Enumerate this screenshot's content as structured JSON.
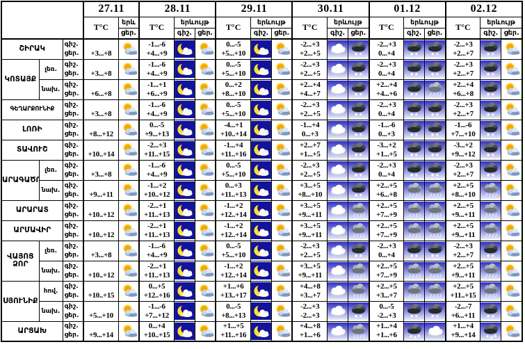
{
  "colors": {
    "border": "#000000",
    "night_icon_bg": "#12129a",
    "day_icon_bg": "#ffffff",
    "blue_gradient_top": "#2f2fc3",
    "blue_gradient_bottom": "#e6ebfa",
    "sun": "#f6a800"
  },
  "chart_data": {
    "type": "table",
    "title": "",
    "dates": [
      "27.11",
      "28.11",
      "29.11",
      "30.11",
      "01.12",
      "02.12"
    ],
    "temp_label": "T°C",
    "phenomenon_label": "երևույթ",
    "phenomenon_short": "երև",
    "night_label": "գիշ.",
    "day_label": "ցեր.",
    "icon_legend": {
      "sun-cloud": "partly cloudy day (sun with cloud)",
      "moon-cloud": "clear night (crescent moon with cloud)",
      "cloud": "cloudy (white cloud on blue sky)",
      "rain": "rain (gray cloud with rain streaks)",
      "rain-dark": "rain (dark cloud with drops)",
      "snow": "snow (dark cloud with snowflakes)"
    },
    "regions": [
      {
        "name": "ՇԻՐԱԿ",
        "zones": [
          {
            "label": "",
            "cells": [
              {
                "d": "+3...+8",
                "di": "sun-cloud"
              },
              {
                "n": "-1...-6",
                "d": "+4...+9",
                "ni": "moon-cloud",
                "di": "sun-cloud"
              },
              {
                "n": "0...-5",
                "d": "+5...+10",
                "ni": "moon-cloud",
                "di": "sun-cloud"
              },
              {
                "n": "-2...+3",
                "d": "+2...+5",
                "ni": "cloud",
                "di": "rain-dark"
              },
              {
                "n": "-2...+3",
                "d": "0...+4",
                "ni": "rain-dark",
                "di": "rain-dark"
              },
              {
                "n": "-2...+3",
                "d": "+2...+7",
                "ni": "rain-dark",
                "di": "sun-cloud"
              }
            ]
          }
        ]
      },
      {
        "name": "ԿՈՏԱՅՔ",
        "zones": [
          {
            "label": "լեռ.",
            "cells": [
              {
                "d": "+3...+8",
                "di": "sun-cloud"
              },
              {
                "n": "-1...-6",
                "d": "+4...+9",
                "ni": "moon-cloud",
                "di": "sun-cloud"
              },
              {
                "n": "0...-5",
                "d": "+5...+10",
                "ni": "moon-cloud",
                "di": "sun-cloud"
              },
              {
                "n": "-2...+3",
                "d": "+2...+5",
                "ni": "cloud",
                "di": "rain-dark"
              },
              {
                "n": "-2...+3",
                "d": "0...+4",
                "ni": "rain-dark",
                "di": "rain-dark"
              },
              {
                "n": "-2...+3",
                "d": "+2...+7",
                "ni": "rain-dark",
                "di": "sun-cloud"
              }
            ]
          },
          {
            "label": "նախ.",
            "cells": [
              {
                "d": "+6...+8",
                "di": "sun-cloud"
              },
              {
                "n": "-1...+1",
                "d": "+6...+9",
                "ni": "moon-cloud",
                "di": "sun-cloud"
              },
              {
                "n": "0...+2",
                "d": "+8...+10",
                "ni": "moon-cloud",
                "di": "sun-cloud"
              },
              {
                "n": "+2...+4",
                "d": "+4...+7",
                "ni": "cloud",
                "di": "rain-dark"
              },
              {
                "n": "+2...+4",
                "d": "+4...+6",
                "ni": "rain-dark",
                "di": "rain"
              },
              {
                "n": "+2...+4",
                "d": "+6...+8",
                "ni": "rain-dark",
                "di": "sun-cloud"
              }
            ]
          }
        ]
      },
      {
        "name": "ԳԵՂԱՐՔՈՒՆԻՔ",
        "zones": [
          {
            "label": "",
            "cells": [
              {
                "d": "+3...+8",
                "di": "sun-cloud"
              },
              {
                "n": "-1...-6",
                "d": "+4...+9",
                "ni": "moon-cloud",
                "di": "sun-cloud"
              },
              {
                "n": "0...-5",
                "d": "+5...+10",
                "ni": "moon-cloud",
                "di": "sun-cloud"
              },
              {
                "n": "-2...+3",
                "d": "+2...+5",
                "ni": "cloud",
                "di": "rain-dark"
              },
              {
                "n": "-2...+3",
                "d": "0...+4",
                "ni": "rain-dark",
                "di": "rain-dark"
              },
              {
                "n": "-2...+3",
                "d": "+2...+7",
                "ni": "rain-dark",
                "di": "sun-cloud"
              }
            ]
          }
        ]
      },
      {
        "name": "ԼՈՌԻ",
        "zones": [
          {
            "label": "",
            "cells": [
              {
                "d": "+8...+12",
                "di": "sun-cloud"
              },
              {
                "n": "0...-5",
                "d": "+9...+13",
                "ni": "moon-cloud",
                "di": "sun-cloud"
              },
              {
                "n": "-4...+1",
                "d": "+10..+14",
                "ni": "moon-cloud",
                "di": "sun-cloud"
              },
              {
                "n": "-1...+4",
                "d": "0...+3",
                "ni": "cloud",
                "di": "rain-dark"
              },
              {
                "n": "-1...-6",
                "d": "0...+3",
                "ni": "rain-dark",
                "di": "rain-dark"
              },
              {
                "n": "-1...-6",
                "d": "+7...+10",
                "ni": "rain-dark",
                "di": "sun-cloud"
              }
            ]
          }
        ]
      },
      {
        "name": "ՏԱՎՈՒՇ",
        "zones": [
          {
            "label": "",
            "cells": [
              {
                "d": "+10..+14",
                "di": "sun-cloud"
              },
              {
                "n": "-2...+3",
                "d": "+11..+15",
                "ni": "moon-cloud",
                "di": "sun-cloud"
              },
              {
                "n": "-1...+4",
                "d": "+11..+16",
                "ni": "moon-cloud",
                "di": "sun-cloud"
              },
              {
                "n": "+2...+7",
                "d": "+1...+5",
                "ni": "cloud",
                "di": "rain-dark"
              },
              {
                "n": "-3...+2",
                "d": "+1...+5",
                "ni": "rain-dark",
                "di": "rain-dark"
              },
              {
                "n": "-3...+2",
                "d": "+9...+12",
                "ni": "rain-dark",
                "di": "sun-cloud"
              }
            ]
          }
        ]
      },
      {
        "name": "ԱՐԱԳԱԾՈՏՆ",
        "zones": [
          {
            "label": "լեռ.",
            "cells": [
              {
                "d": "+3...+8",
                "di": "sun-cloud"
              },
              {
                "n": "-1...-6",
                "d": "+4...+9",
                "ni": "moon-cloud",
                "di": "sun-cloud"
              },
              {
                "n": "0...-5",
                "d": "+5...+10",
                "ni": "moon-cloud",
                "di": "sun-cloud"
              },
              {
                "n": "-2...+3",
                "d": "+2...+5",
                "ni": "cloud",
                "di": "rain-dark"
              },
              {
                "n": "-2...+3",
                "d": "0...+4",
                "ni": "rain-dark",
                "di": "rain-dark"
              },
              {
                "n": "-2...+3",
                "d": "+2...+7",
                "ni": "rain-dark",
                "di": "sun-cloud"
              }
            ]
          },
          {
            "label": "նախ.",
            "cells": [
              {
                "d": "+9...+11",
                "di": "sun-cloud"
              },
              {
                "n": "-1...+2",
                "d": "+10..+12",
                "ni": "moon-cloud",
                "di": "sun-cloud"
              },
              {
                "n": "0...+3",
                "d": "+11..+13",
                "ni": "moon-cloud",
                "di": "sun-cloud"
              },
              {
                "n": "+3...+5",
                "d": "+8...+10",
                "ni": "cloud",
                "di": "rain-dark"
              },
              {
                "n": "+2...+5",
                "d": "+6...+8",
                "ni": "rain",
                "di": "rain"
              },
              {
                "n": "+2...+5",
                "d": "+8...+10",
                "ni": "rain",
                "di": "sun-cloud"
              }
            ]
          }
        ]
      },
      {
        "name": "ԱՐԱՐԱՏ",
        "zones": [
          {
            "label": "",
            "cells": [
              {
                "d": "+10..+12",
                "di": "sun-cloud"
              },
              {
                "n": "-2...+1",
                "d": "+11..+13",
                "ni": "moon-cloud",
                "di": "sun-cloud"
              },
              {
                "n": "-1...+2",
                "d": "+12..+14",
                "ni": "moon-cloud",
                "di": "sun-cloud"
              },
              {
                "n": "+3...+5",
                "d": "+9...+11",
                "ni": "cloud",
                "di": "rain"
              },
              {
                "n": "+2...+5",
                "d": "+7...+9",
                "ni": "rain",
                "di": "rain"
              },
              {
                "n": "+2...+5",
                "d": "+9...+11",
                "ni": "rain",
                "di": "sun-cloud"
              }
            ]
          }
        ]
      },
      {
        "name": "ԱՐՄԱՎԻՐ",
        "zones": [
          {
            "label": "",
            "cells": [
              {
                "d": "+10..+12",
                "di": "sun-cloud"
              },
              {
                "n": "-2...+1",
                "d": "+11..+13",
                "ni": "moon-cloud",
                "di": "sun-cloud"
              },
              {
                "n": "-1...+2",
                "d": "+12..+14",
                "ni": "moon-cloud",
                "di": "sun-cloud"
              },
              {
                "n": "+3...+5",
                "d": "+9...+11",
                "ni": "cloud",
                "di": "rain"
              },
              {
                "n": "+2...+5",
                "d": "+7...+9",
                "ni": "rain",
                "di": "rain"
              },
              {
                "n": "+2...+5",
                "d": "+9...+11",
                "ni": "rain",
                "di": "sun-cloud"
              }
            ]
          }
        ]
      },
      {
        "name": "ՎԱՅՈՑ ՁՈՐ",
        "zones": [
          {
            "label": "լեռ.",
            "cells": [
              {
                "d": "+3...+8",
                "di": "sun-cloud"
              },
              {
                "n": "-1...-6",
                "d": "+4...+9",
                "ni": "moon-cloud",
                "di": "sun-cloud"
              },
              {
                "n": "0...-5",
                "d": "+5...+10",
                "ni": "moon-cloud",
                "di": "sun-cloud"
              },
              {
                "n": "-2...+3",
                "d": "+2...+5",
                "ni": "cloud",
                "di": "rain-dark"
              },
              {
                "n": "-2...+3",
                "d": "0...+4",
                "ni": "rain-dark",
                "di": "rain-dark"
              },
              {
                "n": "-2...+3",
                "d": "+2...+7",
                "ni": "rain-dark",
                "di": "sun-cloud"
              }
            ]
          },
          {
            "label": "նախ.",
            "cells": [
              {
                "d": "+10..+12",
                "di": "sun-cloud"
              },
              {
                "n": "-2...+1",
                "d": "+11..+13",
                "ni": "moon-cloud",
                "di": "sun-cloud"
              },
              {
                "n": "-1...+2",
                "d": "+12..+14",
                "ni": "moon-cloud",
                "di": "sun-cloud"
              },
              {
                "n": "+3...+5",
                "d": "+9...+11",
                "ni": "cloud",
                "di": "rain"
              },
              {
                "n": "+2...+5",
                "d": "+7...+9",
                "ni": "rain",
                "di": "rain"
              },
              {
                "n": "+2...+5",
                "d": "+9...+11",
                "ni": "rain",
                "di": "sun-cloud"
              }
            ]
          }
        ]
      },
      {
        "name": "ՍՅՈՒՆԻՔ",
        "zones": [
          {
            "label": "հով.",
            "cells": [
              {
                "d": "+10..+15",
                "di": "sun-cloud"
              },
              {
                "n": "0...+5",
                "d": "+12..+16",
                "ni": "moon-cloud",
                "di": "sun-cloud"
              },
              {
                "n": "+1...+6",
                "d": "+13..+17",
                "ni": "moon-cloud",
                "di": "sun-cloud"
              },
              {
                "n": "+4...+8",
                "d": "+3...+7",
                "ni": "cloud",
                "di": "rain"
              },
              {
                "n": "+2...+5",
                "d": "+3...+7",
                "ni": "rain",
                "di": "rain"
              },
              {
                "n": "+2...+5",
                "d": "+11..+15",
                "ni": "rain",
                "di": "sun-cloud"
              }
            ]
          },
          {
            "label": "նախ.",
            "cells": [
              {
                "d": "+5...+10",
                "di": "sun-cloud"
              },
              {
                "n": "-1...-6",
                "d": "+7...+12",
                "ni": "moon-cloud",
                "di": "sun-cloud"
              },
              {
                "n": "0...-5",
                "d": "+8...+13",
                "ni": "moon-cloud",
                "di": "sun-cloud"
              },
              {
                "n": "-2...+3",
                "d": "-2...+3",
                "ni": "cloud",
                "di": "rain-dark"
              },
              {
                "n": "0...-5",
                "d": "-2...+3",
                "ni": "rain-dark",
                "di": "rain-dark"
              },
              {
                "n": "-2...-7",
                "d": "+6...+11",
                "ni": "rain-dark",
                "di": "sun-cloud"
              }
            ]
          }
        ]
      },
      {
        "name": "ԱՐՑԱԽ",
        "zones": [
          {
            "label": "",
            "cells": [
              {
                "d": "+9...+14",
                "di": "sun-cloud"
              },
              {
                "n": "0...+4",
                "d": "+10..+15",
                "ni": "moon-cloud",
                "di": "sun-cloud"
              },
              {
                "n": "+1...+5",
                "d": "+11..+16",
                "ni": "moon-cloud",
                "di": "sun-cloud"
              },
              {
                "n": "+4...+8",
                "d": "+1...+6",
                "ni": "cloud",
                "di": "rain"
              },
              {
                "n": "+1...+4",
                "d": "+1...+6",
                "ni": "snow",
                "di": "cloud"
              },
              {
                "n": "+1...+4",
                "d": "+9...+14",
                "ni": "snow",
                "di": "sun-cloud"
              }
            ]
          }
        ]
      }
    ]
  }
}
